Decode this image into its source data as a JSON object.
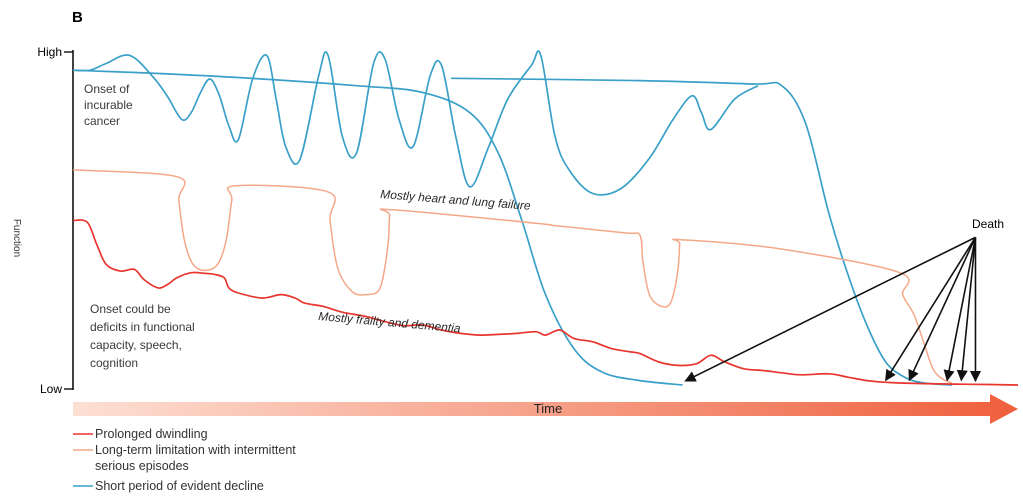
{
  "chart_data": {
    "type": "line",
    "panel_label": "B",
    "ylabel": "Function",
    "xlabel": "Time",
    "y_ticks": [
      "High",
      "Low"
    ],
    "ylim": [
      0,
      1
    ],
    "xlim": [
      0,
      1
    ],
    "colors": {
      "prolonged": "#e8352e",
      "intermittent": "#f4a888",
      "short": "#3aa0c8",
      "arrow": "#111111",
      "time_start": "#fde0d4",
      "time_end": "#ef5f3c"
    },
    "annotations": [
      {
        "id": "cancer-note",
        "lines": [
          "Onset of",
          "incurable",
          "cancer"
        ]
      },
      {
        "id": "frailty-note",
        "lines": [
          "Onset could be",
          "deficits in functional",
          "capacity, speech,",
          "cognition"
        ]
      },
      {
        "id": "heart-label",
        "text": "Mostly heart and  lung failure"
      },
      {
        "id": "frailty-label",
        "text": "Mostly frailty and dementia"
      },
      {
        "id": "death-label",
        "text": "Death"
      }
    ],
    "legend": [
      {
        "key": "prolonged",
        "lines": [
          "Prolonged dwindling"
        ]
      },
      {
        "key": "intermittent",
        "lines": [
          "Long-term limitation with intermittent",
          "serious episodes"
        ]
      },
      {
        "key": "short",
        "lines": [
          "Short period of evident decline"
        ]
      }
    ],
    "series": [
      {
        "key": "short",
        "points": [
          [
            0,
            0.946
          ],
          [
            0.018,
            0.946
          ],
          [
            0.035,
            0.966
          ],
          [
            0.06,
            0.99
          ],
          [
            0.085,
            0.925
          ],
          [
            0.1,
            0.868
          ],
          [
            0.115,
            0.8
          ],
          [
            0.125,
            0.82
          ],
          [
            0.135,
            0.88
          ],
          [
            0.145,
            0.92
          ],
          [
            0.155,
            0.87
          ],
          [
            0.165,
            0.78
          ],
          [
            0.175,
            0.74
          ],
          [
            0.19,
            0.92
          ],
          [
            0.205,
            0.99
          ],
          [
            0.215,
            0.86
          ],
          [
            0.225,
            0.72
          ],
          [
            0.24,
            0.68
          ],
          [
            0.26,
            0.93
          ],
          [
            0.27,
            0.99
          ],
          [
            0.285,
            0.75
          ],
          [
            0.3,
            0.7
          ],
          [
            0.318,
            0.965
          ],
          [
            0.33,
            0.98
          ],
          [
            0.345,
            0.8
          ],
          [
            0.36,
            0.72
          ],
          [
            0.378,
            0.93
          ],
          [
            0.39,
            0.96
          ],
          [
            0.405,
            0.75
          ],
          [
            0.42,
            0.6
          ],
          [
            0.44,
            0.72
          ],
          [
            0.46,
            0.86
          ],
          [
            0.485,
            0.96
          ],
          [
            0.495,
            0.99
          ],
          [
            0.51,
            0.75
          ],
          [
            0.525,
            0.65
          ],
          [
            0.55,
            0.58
          ],
          [
            0.58,
            0.595
          ],
          [
            0.61,
            0.685
          ],
          [
            0.635,
            0.8
          ],
          [
            0.655,
            0.87
          ],
          [
            0.665,
            0.82
          ],
          [
            0.675,
            0.77
          ],
          [
            0.7,
            0.86
          ],
          [
            0.725,
            0.9
          ]
        ]
      },
      {
        "key": "short",
        "points": [
          [
            0,
            0.946
          ],
          [
            0.1,
            0.935
          ],
          [
            0.2,
            0.92
          ],
          [
            0.3,
            0.9
          ],
          [
            0.37,
            0.88
          ],
          [
            0.42,
            0.82
          ],
          [
            0.45,
            0.7
          ],
          [
            0.475,
            0.5
          ],
          [
            0.5,
            0.28
          ],
          [
            0.53,
            0.12
          ],
          [
            0.56,
            0.05
          ],
          [
            0.6,
            0.025
          ],
          [
            0.645,
            0.012
          ]
        ]
      },
      {
        "key": "short",
        "points": [
          [
            0.4,
            0.922
          ],
          [
            0.6,
            0.915
          ],
          [
            0.72,
            0.905
          ],
          [
            0.75,
            0.9
          ],
          [
            0.775,
            0.79
          ],
          [
            0.8,
            0.52
          ],
          [
            0.82,
            0.34
          ],
          [
            0.84,
            0.19
          ],
          [
            0.86,
            0.08
          ],
          [
            0.88,
            0.035
          ],
          [
            0.9,
            0.018
          ],
          [
            0.93,
            0.012
          ]
        ]
      },
      {
        "key": "intermittent",
        "points": [
          [
            0,
            0.65
          ],
          [
            0.11,
            0.63
          ],
          [
            0.112,
            0.56
          ],
          [
            0.118,
            0.44
          ],
          [
            0.127,
            0.37
          ],
          [
            0.14,
            0.352
          ],
          [
            0.153,
            0.37
          ],
          [
            0.162,
            0.44
          ],
          [
            0.168,
            0.56
          ],
          [
            0.172,
            0.603
          ],
          [
            0.27,
            0.585
          ],
          [
            0.272,
            0.5
          ],
          [
            0.28,
            0.36
          ],
          [
            0.295,
            0.29
          ],
          [
            0.31,
            0.28
          ],
          [
            0.325,
            0.3
          ],
          [
            0.333,
            0.42
          ],
          [
            0.335,
            0.515
          ],
          [
            0.337,
            0.532
          ],
          [
            0.49,
            0.492
          ],
          [
            0.51,
            0.485
          ],
          [
            0.585,
            0.463
          ],
          [
            0.6,
            0.456
          ],
          [
            0.603,
            0.38
          ],
          [
            0.61,
            0.28
          ],
          [
            0.623,
            0.245
          ],
          [
            0.633,
            0.26
          ],
          [
            0.64,
            0.35
          ],
          [
            0.642,
            0.43
          ],
          [
            0.643,
            0.443
          ],
          [
            0.75,
            0.415
          ],
          [
            0.875,
            0.345
          ],
          [
            0.878,
            0.28
          ],
          [
            0.89,
            0.22
          ],
          [
            0.9,
            0.14
          ],
          [
            0.91,
            0.06
          ],
          [
            0.92,
            0.03
          ],
          [
            0.93,
            0.018
          ]
        ]
      },
      {
        "key": "prolonged",
        "points": [
          [
            0,
            0.5
          ],
          [
            0.015,
            0.495
          ],
          [
            0.025,
            0.43
          ],
          [
            0.035,
            0.37
          ],
          [
            0.05,
            0.35
          ],
          [
            0.065,
            0.355
          ],
          [
            0.075,
            0.325
          ],
          [
            0.09,
            0.3
          ],
          [
            0.1,
            0.31
          ],
          [
            0.11,
            0.33
          ],
          [
            0.125,
            0.345
          ],
          [
            0.14,
            0.343
          ],
          [
            0.15,
            0.34
          ],
          [
            0.16,
            0.33
          ],
          [
            0.165,
            0.3
          ],
          [
            0.175,
            0.285
          ],
          [
            0.2,
            0.27
          ],
          [
            0.22,
            0.28
          ],
          [
            0.235,
            0.27
          ],
          [
            0.245,
            0.255
          ],
          [
            0.265,
            0.245
          ],
          [
            0.285,
            0.228
          ],
          [
            0.31,
            0.215
          ],
          [
            0.33,
            0.2
          ],
          [
            0.35,
            0.188
          ],
          [
            0.37,
            0.19
          ],
          [
            0.39,
            0.175
          ],
          [
            0.41,
            0.165
          ],
          [
            0.43,
            0.16
          ],
          [
            0.45,
            0.162
          ],
          [
            0.47,
            0.165
          ],
          [
            0.49,
            0.17
          ],
          [
            0.5,
            0.16
          ],
          [
            0.515,
            0.175
          ],
          [
            0.53,
            0.15
          ],
          [
            0.55,
            0.14
          ],
          [
            0.57,
            0.12
          ],
          [
            0.59,
            0.11
          ],
          [
            0.6,
            0.105
          ],
          [
            0.62,
            0.08
          ],
          [
            0.64,
            0.07
          ],
          [
            0.66,
            0.075
          ],
          [
            0.675,
            0.1
          ],
          [
            0.69,
            0.08
          ],
          [
            0.71,
            0.06
          ],
          [
            0.73,
            0.055
          ],
          [
            0.75,
            0.048
          ],
          [
            0.77,
            0.042
          ],
          [
            0.8,
            0.045
          ],
          [
            0.82,
            0.035
          ],
          [
            0.84,
            0.025
          ],
          [
            0.86,
            0.02
          ],
          [
            0.9,
            0.016
          ],
          [
            0.95,
            0.014
          ],
          [
            1,
            0.012
          ]
        ]
      }
    ],
    "death_origin": [
      0.955,
      0.45
    ],
    "death_targets": [
      [
        0.648,
        0.012
      ],
      [
        0.86,
        0.014
      ],
      [
        0.885,
        0.014
      ],
      [
        0.925,
        0.014
      ],
      [
        0.94,
        0.014
      ],
      [
        0.955,
        0.012
      ]
    ]
  }
}
